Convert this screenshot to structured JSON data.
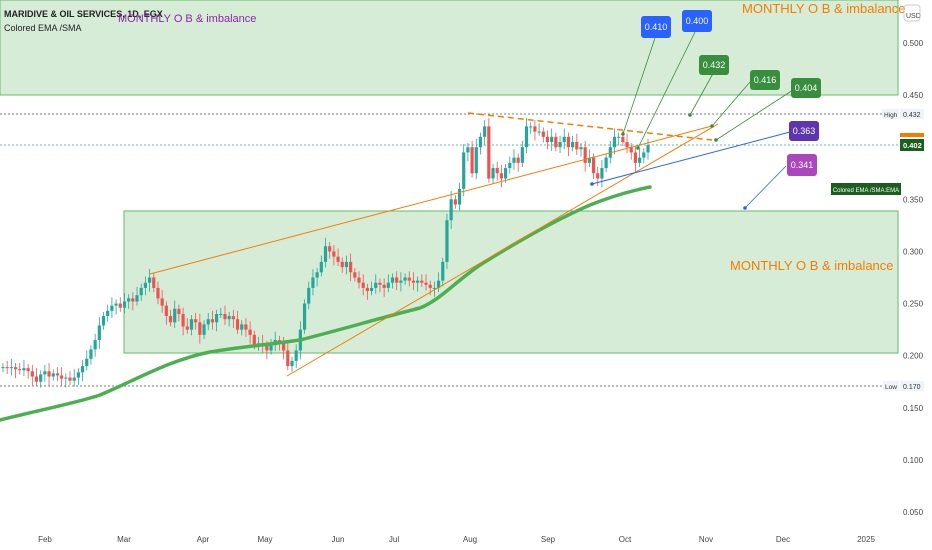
{
  "header": {
    "symbol_line": "MARIDIVE & OIL SERVICES, 1D, EGX",
    "indicator": "Colored EMA /SMA"
  },
  "currency": "USD",
  "zones": {
    "upper_label": "MONTHLY  O B & imbalance",
    "lower_label": "MONTHLY  O B & imbalance",
    "upper_range": [
      0.45,
      0.53
    ],
    "lower_range": [
      0.2,
      0.34
    ]
  },
  "hlines": {
    "high_label": "High",
    "high_value": "0.432",
    "low_label": "Low",
    "low_value": "0.170",
    "current_value": "0.402"
  },
  "callouts": [
    {
      "text": "0.410",
      "color": "#2962ff"
    },
    {
      "text": "0.400",
      "color": "#2962ff"
    },
    {
      "text": "0.432",
      "color": "#388e3c"
    },
    {
      "text": "0.416",
      "color": "#388e3c"
    },
    {
      "text": "0.404",
      "color": "#388e3c"
    },
    {
      "text": "0.363",
      "color": "#5e35b1"
    },
    {
      "text": "0.341",
      "color": "#ab47bc"
    }
  ],
  "ema_tag": "Colored EMA /SMA:EMA",
  "colors": {
    "up": "#26a69a",
    "down": "#ef5350",
    "zone": "#c8e6c9",
    "ema": "#4caf50",
    "trend": "#f57c00"
  },
  "chart_data": {
    "type": "candlestick",
    "ylim": [
      0.04,
      0.53
    ],
    "yticks": [
      "0.500",
      "0.450",
      "0.400",
      "0.350",
      "0.300",
      "0.250",
      "0.200",
      "0.150",
      "0.100",
      "0.050"
    ],
    "xticks": [
      "Feb",
      "Mar",
      "Apr",
      "May",
      "Jun",
      "Jul",
      "Aug",
      "Sep",
      "Oct",
      "Nov",
      "Dec",
      "2025"
    ],
    "close": [
      0.189,
      0.188,
      0.189,
      0.187,
      0.186,
      0.188,
      0.185,
      0.18,
      0.175,
      0.182,
      0.185,
      0.18,
      0.183,
      0.181,
      0.178,
      0.179,
      0.176,
      0.179,
      0.184,
      0.19,
      0.197,
      0.206,
      0.215,
      0.229,
      0.238,
      0.243,
      0.248,
      0.25,
      0.246,
      0.252,
      0.255,
      0.252,
      0.258,
      0.265,
      0.27,
      0.275,
      0.265,
      0.255,
      0.248,
      0.238,
      0.232,
      0.245,
      0.24,
      0.228,
      0.225,
      0.235,
      0.232,
      0.22,
      0.23,
      0.235,
      0.232,
      0.24,
      0.24,
      0.235,
      0.238,
      0.235,
      0.225,
      0.23,
      0.225,
      0.22,
      0.21,
      0.212,
      0.21,
      0.205,
      0.21,
      0.215,
      0.212,
      0.205,
      0.19,
      0.195,
      0.205,
      0.225,
      0.25,
      0.265,
      0.275,
      0.28,
      0.29,
      0.305,
      0.3,
      0.295,
      0.29,
      0.285,
      0.29,
      0.28,
      0.275,
      0.27,
      0.265,
      0.262,
      0.265,
      0.27,
      0.268,
      0.265,
      0.27,
      0.275,
      0.27,
      0.272,
      0.275,
      0.272,
      0.27,
      0.272,
      0.27,
      0.268,
      0.265,
      0.265,
      0.272,
      0.29,
      0.33,
      0.35,
      0.345,
      0.36,
      0.395,
      0.4,
      0.375,
      0.4,
      0.41,
      0.42,
      0.37,
      0.38,
      0.375,
      0.37,
      0.38,
      0.385,
      0.39,
      0.385,
      0.4,
      0.42,
      0.42,
      0.415,
      0.415,
      0.41,
      0.405,
      0.41,
      0.4,
      0.405,
      0.41,
      0.4,
      0.405,
      0.398,
      0.4,
      0.385,
      0.39,
      0.375,
      0.37,
      0.38,
      0.39,
      0.4,
      0.41,
      0.41,
      0.405,
      0.4,
      0.395,
      0.385,
      0.39,
      0.395,
      0.402
    ]
  }
}
